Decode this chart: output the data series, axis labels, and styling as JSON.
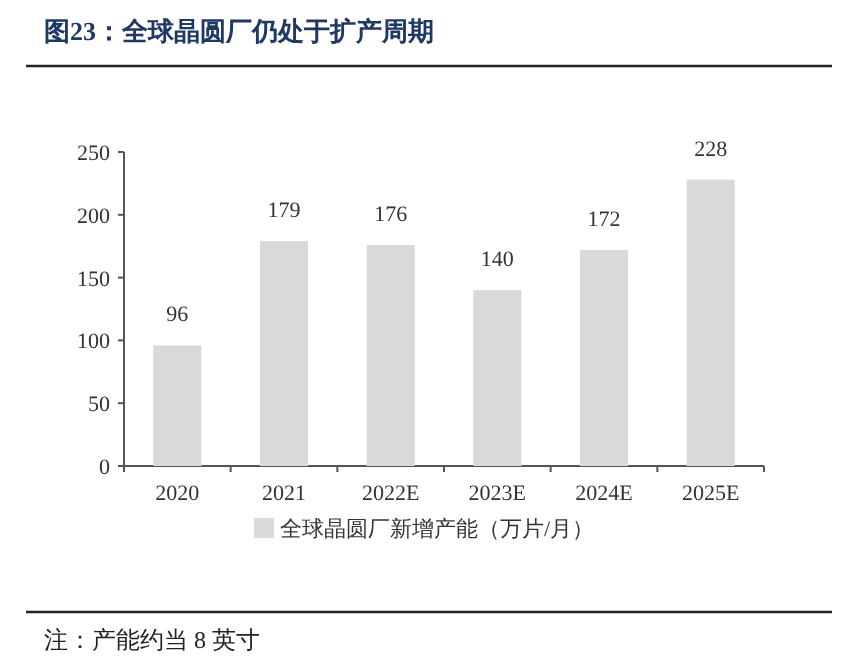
{
  "chart_data": {
    "type": "bar",
    "title": "图23：全球晶圆厂仍处于扩产周期",
    "categories": [
      "2020",
      "2021",
      "2022E",
      "2023E",
      "2024E",
      "2025E"
    ],
    "series": [
      {
        "name": "全球晶圆厂新增产能（万片/月）",
        "color": "#d9d9d9",
        "values": [
          96,
          179,
          176,
          140,
          172,
          228
        ]
      }
    ],
    "ylim": [
      0,
      250
    ],
    "yticks": [
      0,
      50,
      100,
      150,
      200,
      250
    ],
    "data_labels": true,
    "legend": "bottom",
    "grid": false,
    "annotations": [
      "注：产能约当 8 英寸"
    ]
  }
}
